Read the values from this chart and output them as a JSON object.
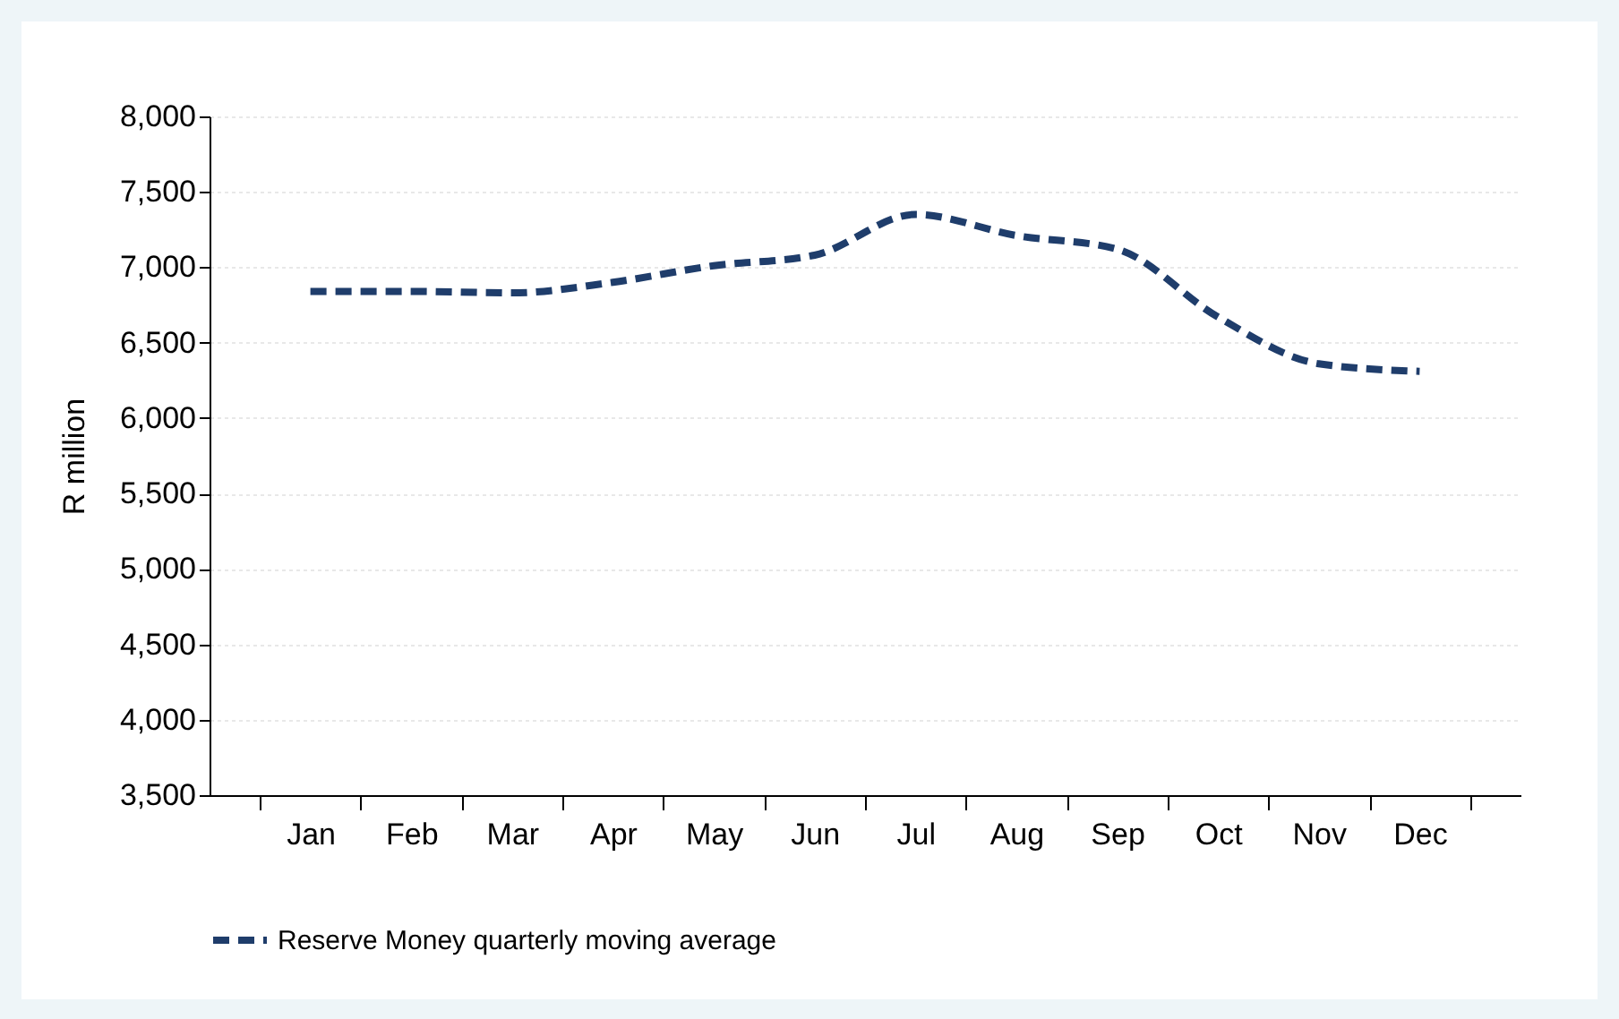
{
  "chart_data": {
    "type": "line",
    "ylabel": "R million",
    "categories": [
      "Jan",
      "Feb",
      "Mar",
      "Apr",
      "May",
      "Jun",
      "Jul",
      "Aug",
      "Sep",
      "Oct",
      "Nov",
      "Dec"
    ],
    "series": [
      {
        "name": "Reserve Money quarterly moving average",
        "color": "#1f3d6b",
        "values": [
          6840,
          6840,
          6830,
          6900,
          7010,
          7080,
          7350,
          7210,
          7120,
          6670,
          6360,
          6310
        ]
      }
    ],
    "ylim": [
      3500,
      8000
    ],
    "yticks": [
      {
        "value": 3500,
        "label": "3,500"
      },
      {
        "value": 4000,
        "label": "4,000"
      },
      {
        "value": 4500,
        "label": "4,500"
      },
      {
        "value": 5000,
        "label": "5,000"
      },
      {
        "value": 5500,
        "label": "5,500"
      },
      {
        "value": 6000,
        "label": "6,000"
      },
      {
        "value": 6500,
        "label": "6,500"
      },
      {
        "value": 7000,
        "label": "7,000"
      },
      {
        "value": 7500,
        "label": "7,500"
      },
      {
        "value": 8000,
        "label": "8,000"
      }
    ],
    "grid": "y",
    "legend": "bottom",
    "line_style": "dashed"
  }
}
